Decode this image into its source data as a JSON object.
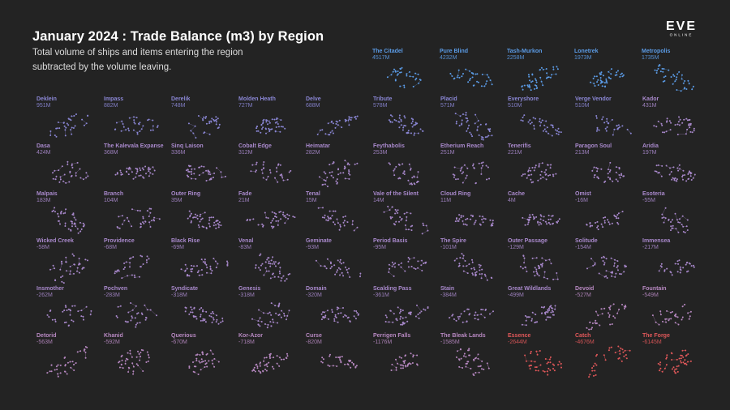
{
  "title": "January 2024 : Trade Balance (m3) by Region",
  "subtitle_line1": "Total volume of ships and items entering the region",
  "subtitle_line2": "subtracted by the volume leaving.",
  "logo": {
    "main": "EVE",
    "sub": "ONLINE"
  },
  "colors": {
    "positive_strong": "#5b9be6",
    "positive": "#8a86d4",
    "neutral": "#a989cc",
    "negative": "#b889c2",
    "negative_strong": "#e2585a"
  },
  "chart_data": {
    "type": "small-multiples",
    "title": "January 2024 : Trade Balance (m3) by Region",
    "unit": "m3",
    "regions": [
      {
        "name": "The Citadel",
        "label": "4517M",
        "value": 4517
      },
      {
        "name": "Pure Blind",
        "label": "4232M",
        "value": 4232
      },
      {
        "name": "Tash-Murkon",
        "label": "2258M",
        "value": 2258
      },
      {
        "name": "Lonetrek",
        "label": "1973M",
        "value": 1973
      },
      {
        "name": "Metropolis",
        "label": "1735M",
        "value": 1735
      },
      {
        "name": "Deklein",
        "label": "951M",
        "value": 951
      },
      {
        "name": "Impass",
        "label": "882M",
        "value": 882
      },
      {
        "name": "Derelik",
        "label": "748M",
        "value": 748
      },
      {
        "name": "Molden Heath",
        "label": "727M",
        "value": 727
      },
      {
        "name": "Delve",
        "label": "688M",
        "value": 688
      },
      {
        "name": "Tribute",
        "label": "578M",
        "value": 578
      },
      {
        "name": "Placid",
        "label": "571M",
        "value": 571
      },
      {
        "name": "Everyshore",
        "label": "510M",
        "value": 510
      },
      {
        "name": "Verge Vendor",
        "label": "510M",
        "value": 510
      },
      {
        "name": "Kador",
        "label": "431M",
        "value": 431
      },
      {
        "name": "Dasa",
        "label": "424M",
        "value": 424
      },
      {
        "name": "The Kalevala Expanse",
        "label": "368M",
        "value": 368
      },
      {
        "name": "Sinq Laison",
        "label": "336M",
        "value": 336
      },
      {
        "name": "Cobalt Edge",
        "label": "312M",
        "value": 312
      },
      {
        "name": "Heimatar",
        "label": "282M",
        "value": 282
      },
      {
        "name": "Feythabolis",
        "label": "253M",
        "value": 253
      },
      {
        "name": "Etherium Reach",
        "label": "251M",
        "value": 251
      },
      {
        "name": "Tenerifis",
        "label": "221M",
        "value": 221
      },
      {
        "name": "Paragon Soul",
        "label": "213M",
        "value": 213
      },
      {
        "name": "Aridia",
        "label": "197M",
        "value": 197
      },
      {
        "name": "Malpais",
        "label": "183M",
        "value": 183
      },
      {
        "name": "Branch",
        "label": "104M",
        "value": 104
      },
      {
        "name": "Outer Ring",
        "label": "35M",
        "value": 35
      },
      {
        "name": "Fade",
        "label": "21M",
        "value": 21
      },
      {
        "name": "Tenal",
        "label": "15M",
        "value": 15
      },
      {
        "name": "Vale of the Silent",
        "label": "14M",
        "value": 14
      },
      {
        "name": "Cloud Ring",
        "label": "11M",
        "value": 11
      },
      {
        "name": "Cache",
        "label": "4M",
        "value": 4
      },
      {
        "name": "Omist",
        "label": "-16M",
        "value": -16
      },
      {
        "name": "Esoteria",
        "label": "-55M",
        "value": -55
      },
      {
        "name": "Wicked Creek",
        "label": "-58M",
        "value": -58
      },
      {
        "name": "Providence",
        "label": "-68M",
        "value": -68
      },
      {
        "name": "Black Rise",
        "label": "-69M",
        "value": -69
      },
      {
        "name": "Venal",
        "label": "-83M",
        "value": -83
      },
      {
        "name": "Geminate",
        "label": "-93M",
        "value": -93
      },
      {
        "name": "Period Basis",
        "label": "-95M",
        "value": -95
      },
      {
        "name": "The Spire",
        "label": "-101M",
        "value": -101
      },
      {
        "name": "Outer Passage",
        "label": "-129M",
        "value": -129
      },
      {
        "name": "Solitude",
        "label": "-154M",
        "value": -154
      },
      {
        "name": "Immensea",
        "label": "-217M",
        "value": -217
      },
      {
        "name": "Insmother",
        "label": "-262M",
        "value": -262
      },
      {
        "name": "Pochven",
        "label": "-283M",
        "value": -283
      },
      {
        "name": "Syndicate",
        "label": "-318M",
        "value": -318
      },
      {
        "name": "Genesis",
        "label": "-318M",
        "value": -318
      },
      {
        "name": "Domain",
        "label": "-320M",
        "value": -320
      },
      {
        "name": "Scalding Pass",
        "label": "-361M",
        "value": -361
      },
      {
        "name": "Stain",
        "label": "-384M",
        "value": -384
      },
      {
        "name": "Great Wildlands",
        "label": "-499M",
        "value": -499
      },
      {
        "name": "Devoid",
        "label": "-527M",
        "value": -527
      },
      {
        "name": "Fountain",
        "label": "-549M",
        "value": -549
      },
      {
        "name": "Detorid",
        "label": "-563M",
        "value": -563
      },
      {
        "name": "Khanid",
        "label": "-592M",
        "value": -592
      },
      {
        "name": "Querious",
        "label": "-670M",
        "value": -670
      },
      {
        "name": "Kor-Azor",
        "label": "-718M",
        "value": -718
      },
      {
        "name": "Curse",
        "label": "-820M",
        "value": -820
      },
      {
        "name": "Perrigen Falls",
        "label": "-1176M",
        "value": -1176
      },
      {
        "name": "The Bleak Lands",
        "label": "-1585M",
        "value": -1585
      },
      {
        "name": "Essence",
        "label": "-2644M",
        "value": -2644
      },
      {
        "name": "Catch",
        "label": "-4676M",
        "value": -4676
      },
      {
        "name": "The Forge",
        "label": "-6145M",
        "value": -6145
      }
    ]
  }
}
